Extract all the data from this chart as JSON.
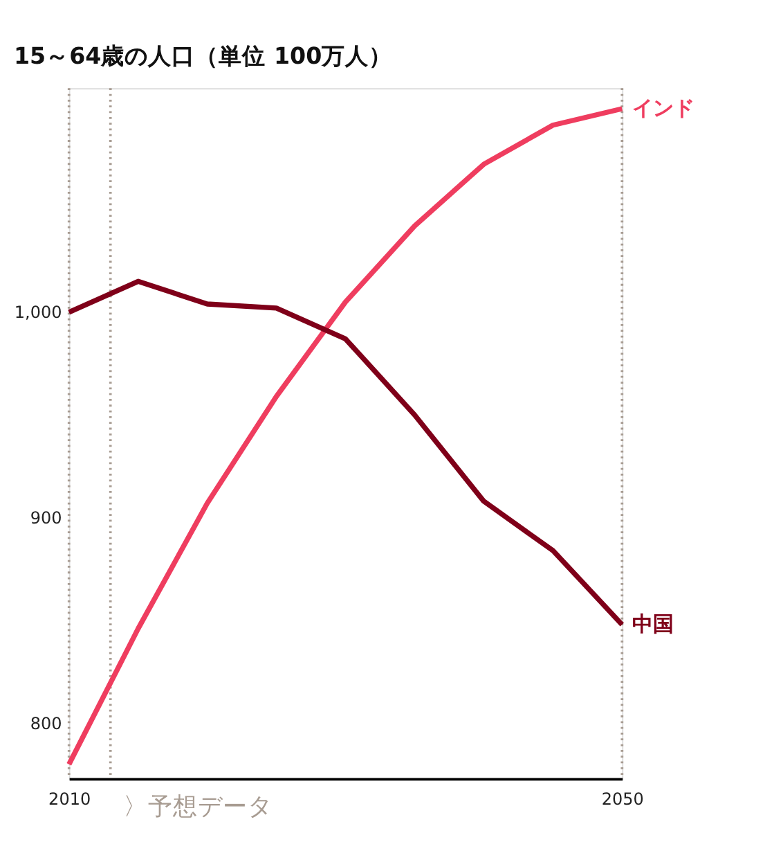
{
  "chart_data": {
    "type": "line",
    "title": "15～64歳の人口（単位 100万人）",
    "x": [
      2010,
      2015,
      2020,
      2025,
      2030,
      2035,
      2040,
      2045,
      2050
    ],
    "series": [
      {
        "name": "インド",
        "color": "#ef3d5f",
        "values": [
          780,
          846,
          907,
          959,
          1005,
          1042,
          1072,
          1091,
          1099
        ]
      },
      {
        "name": "中国",
        "color": "#7f0019",
        "values": [
          1000,
          1015,
          1004,
          1002,
          987,
          950,
          908,
          884,
          848
        ]
      }
    ],
    "xlim": [
      2010,
      2050
    ],
    "xticks": [
      2010,
      2050
    ],
    "ylim": [
      773,
      1109
    ],
    "yticks": [
      800,
      900,
      {
        "value": 1000,
        "label": "1,000"
      }
    ],
    "ref_lines": [
      {
        "axis": "x",
        "value": 2010,
        "color": "#a89c92",
        "line_style": "dotted"
      },
      {
        "axis": "x",
        "value": 2013,
        "label": "〉予想データ",
        "color": "#a89c92",
        "line_style": "dotted"
      },
      {
        "axis": "x",
        "value": 2050,
        "color": "#a89c92",
        "line_style": "dotted"
      }
    ],
    "grid": false,
    "legend": false,
    "marker": "none",
    "line_style": "solid"
  }
}
